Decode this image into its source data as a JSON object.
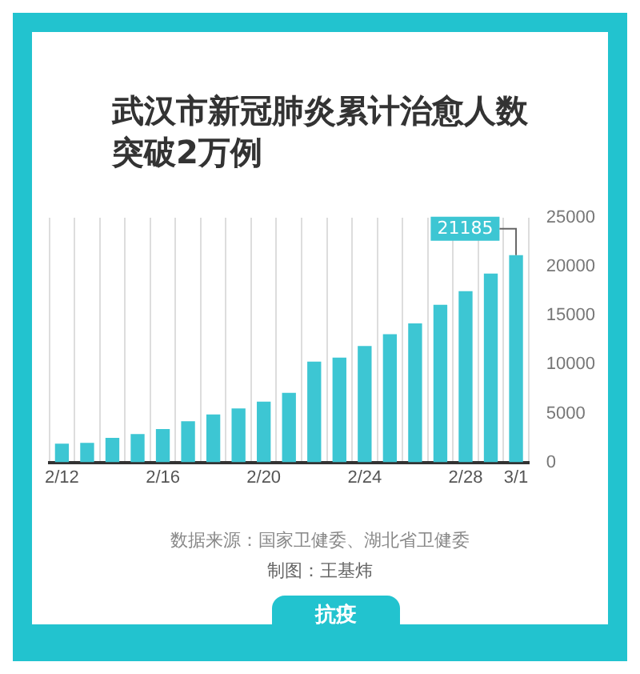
{
  "chart_data": {
    "type": "bar",
    "title": "武汉市新冠肺炎累计治愈人数突破2万例",
    "categories": [
      "2/12",
      null,
      null,
      null,
      "2/16",
      null,
      null,
      null,
      "2/20",
      null,
      null,
      null,
      "2/24",
      null,
      null,
      null,
      "2/28",
      null,
      "3/1"
    ],
    "values": [
      1900,
      2000,
      2500,
      2900,
      3400,
      4200,
      4900,
      5500,
      6200,
      7100,
      10300,
      10700,
      11900,
      13100,
      14200,
      16100,
      17500,
      19300,
      21185
    ],
    "value_labels": [
      null,
      null,
      null,
      null,
      null,
      null,
      null,
      null,
      null,
      null,
      null,
      null,
      null,
      null,
      null,
      null,
      null,
      null,
      "21185"
    ],
    "color": "#3dc6d3",
    "ylim": [
      0,
      25000
    ],
    "yticks": [
      0,
      5000,
      10000,
      15000,
      20000,
      25000
    ],
    "grid": "x",
    "annotations": [
      "数据来源：国家卫健委、湖北省卫健委",
      "制图：王基炜",
      "抗疫"
    ]
  }
}
